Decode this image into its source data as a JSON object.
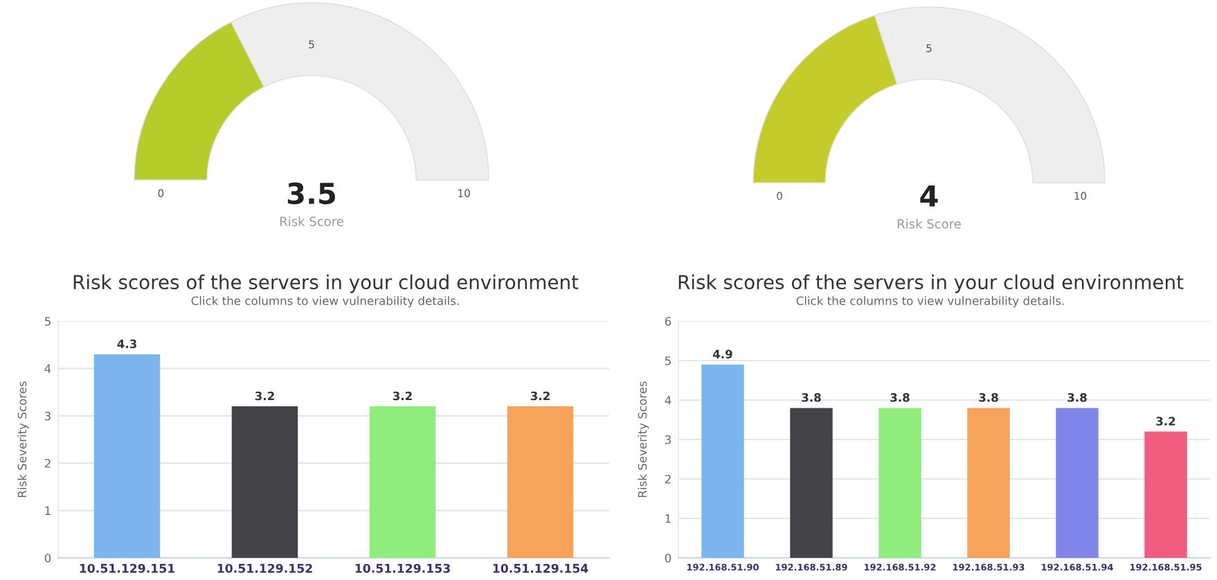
{
  "chart_data": [
    {
      "type": "donut",
      "categories": [
        null,
        null
      ],
      "values": [
        35,
        65
      ],
      "colors": [
        "#b5cc2a",
        "#eeeeee"
      ],
      "title": "3.5",
      "xlabel": "Risk Score",
      "annotations": [
        "0",
        "5",
        "10"
      ]
    },
    {
      "type": "donut",
      "categories": [
        null,
        null
      ],
      "values": [
        40,
        60
      ],
      "colors": [
        "#c3cc2a",
        "#eeeeee"
      ],
      "title": "4",
      "xlabel": "Risk Score",
      "annotations": [
        "0",
        "5",
        "10"
      ]
    },
    {
      "type": "bar",
      "title": "Risk scores of the servers in your cloud environment",
      "subtitle": "Click the columns to view vulnerability details.",
      "ylabel": "Risk Severity Scores",
      "categories": [
        "10.51.129.151",
        "10.51.129.152",
        "10.51.129.153",
        "10.51.129.154"
      ],
      "values": [
        4.3,
        3.2,
        3.2,
        3.2
      ],
      "colors": [
        "#7cb5ec",
        "#434348",
        "#90ed7d",
        "#f7a35c"
      ],
      "ylim": [
        0,
        5
      ],
      "yticks": [
        0,
        1,
        2,
        3,
        4,
        5
      ],
      "grid": "y",
      "data_labels": true
    },
    {
      "type": "bar",
      "title": "Risk scores of the servers in your cloud environment",
      "subtitle": "Click the columns to view vulnerability details.",
      "ylabel": "Risk Severity Scores",
      "categories": [
        "192.168.51.90",
        "192.168.51.89",
        "192.168.51.92",
        "192.168.51.93",
        "192.168.51.94",
        "192.168.51.95"
      ],
      "values": [
        4.9,
        3.8,
        3.8,
        3.8,
        3.8,
        3.2
      ],
      "colors": [
        "#7cb5ec",
        "#434348",
        "#90ed7d",
        "#f7a35c",
        "#8085e9",
        "#f15c80"
      ],
      "ylim": [
        0,
        6
      ],
      "yticks": [
        0,
        1,
        2,
        3,
        4,
        5,
        6
      ],
      "grid": "y",
      "data_labels": true
    }
  ]
}
